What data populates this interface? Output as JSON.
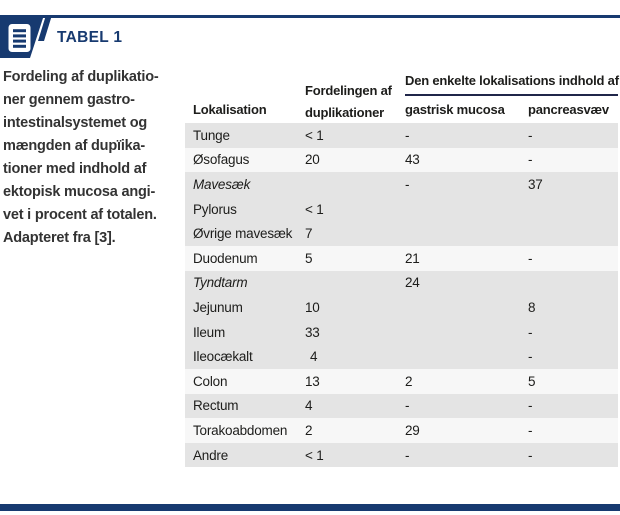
{
  "colors": {
    "brand_navy": "#173a70",
    "row_shaded": "#e4e4e4",
    "row_light": "#f7f7f7",
    "text_dark": "#1d1d1b",
    "span_rule": "#20264a"
  },
  "header": {
    "icon": "document-list-icon",
    "title": "TABEL 1"
  },
  "caption": "Fordeling af duplikatio-\nner gennem gastro-\nintestinalsystemet og\nmængden af dupïika-\ntioner med indhold af\nektopisk mucosa angi-\nvet i procent af totalen.\nAdapteret fra [3].",
  "table": {
    "col_lokalisation": "Lokalisation",
    "col_fordelingen": "Fordelingen af\nduplikationer",
    "span_header": "Den enkelte lokalisations indhold af",
    "col_gastrisk": "gastrisk mucosa",
    "col_pancreas": "pancreasvæv",
    "rows": [
      {
        "name": "Tunge",
        "dist": "< 1",
        "gastric": "-",
        "pancreas": "-",
        "shaded": true,
        "italic": false,
        "dist_indent": false
      },
      {
        "name": "Øsofagus",
        "dist": "20",
        "gastric": "43",
        "pancreas": "-",
        "shaded": false,
        "italic": false,
        "dist_indent": false
      },
      {
        "name": "Mavesæk",
        "dist": "",
        "gastric": "-",
        "pancreas": "37",
        "shaded": true,
        "italic": true,
        "dist_indent": false
      },
      {
        "name": "Pylorus",
        "dist": "< 1",
        "gastric": "",
        "pancreas": "",
        "shaded": true,
        "italic": false,
        "dist_indent": false
      },
      {
        "name": "Øvrige mavesæk",
        "dist": "7",
        "gastric": "",
        "pancreas": "",
        "shaded": true,
        "italic": false,
        "dist_indent": false
      },
      {
        "name": "Duodenum",
        "dist": "5",
        "gastric": "21",
        "pancreas": "-",
        "shaded": false,
        "italic": false,
        "dist_indent": false
      },
      {
        "name": "Tyndtarm",
        "dist": "",
        "gastric": "24",
        "pancreas": "",
        "shaded": true,
        "italic": true,
        "dist_indent": false
      },
      {
        "name": "Jejunum",
        "dist": "10",
        "gastric": "",
        "pancreas": "8",
        "shaded": true,
        "italic": false,
        "dist_indent": false
      },
      {
        "name": "Ileum",
        "dist": "33",
        "gastric": "",
        "pancreas": "-",
        "shaded": true,
        "italic": false,
        "dist_indent": false
      },
      {
        "name": "Ileocækalt",
        "dist": "4",
        "gastric": "",
        "pancreas": "-",
        "shaded": true,
        "italic": false,
        "dist_indent": true
      },
      {
        "name": "Colon",
        "dist": "13",
        "gastric": "2",
        "pancreas": "5",
        "shaded": false,
        "italic": false,
        "dist_indent": false
      },
      {
        "name": "Rectum",
        "dist": "4",
        "gastric": "-",
        "pancreas": "-",
        "shaded": true,
        "italic": false,
        "dist_indent": false
      },
      {
        "name": "Torakoabdomen",
        "dist": "2",
        "gastric": "29",
        "pancreas": "-",
        "shaded": false,
        "italic": false,
        "dist_indent": false
      },
      {
        "name": "Andre",
        "dist": "< 1",
        "gastric": "-",
        "pancreas": "-",
        "shaded": true,
        "italic": false,
        "dist_indent": false
      }
    ]
  }
}
